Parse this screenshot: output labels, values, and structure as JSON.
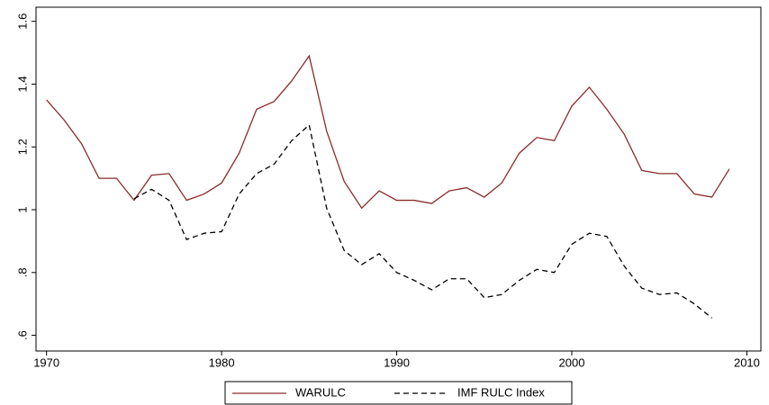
{
  "chart_data": {
    "type": "line",
    "x": [
      1970,
      1971,
      1972,
      1973,
      1974,
      1975,
      1976,
      1977,
      1978,
      1979,
      1980,
      1981,
      1982,
      1983,
      1984,
      1985,
      1986,
      1987,
      1988,
      1989,
      1990,
      1991,
      1992,
      1993,
      1994,
      1995,
      1996,
      1997,
      1998,
      1999,
      2000,
      2001,
      2002,
      2003,
      2004,
      2005,
      2006,
      2007,
      2008,
      2009
    ],
    "series": [
      {
        "name": "WARULC",
        "color": "#8b2b2b",
        "dash": false,
        "values": [
          1.35,
          1.286,
          1.21,
          1.1,
          1.1,
          1.03,
          1.11,
          1.115,
          1.03,
          1.05,
          1.085,
          1.18,
          1.32,
          1.345,
          1.41,
          1.49,
          1.25,
          1.09,
          1.005,
          1.06,
          1.03,
          1.03,
          1.02,
          1.06,
          1.07,
          1.04,
          1.085,
          1.18,
          1.23,
          1.22,
          1.33,
          1.39,
          1.32,
          1.24,
          1.125,
          1.115,
          1.115,
          1.05,
          1.04,
          1.13
        ]
      },
      {
        "name": "IMF RULC Index",
        "color": "#000000",
        "dash": true,
        "values": [
          null,
          null,
          null,
          null,
          null,
          1.035,
          1.065,
          1.03,
          0.905,
          0.925,
          0.93,
          1.05,
          1.115,
          1.145,
          1.22,
          1.27,
          1.005,
          0.87,
          0.825,
          0.86,
          0.8,
          0.775,
          0.745,
          0.78,
          0.78,
          0.72,
          0.73,
          0.775,
          0.81,
          0.8,
          0.89,
          0.925,
          0.915,
          0.82,
          0.75,
          0.73,
          0.735,
          0.7,
          0.655,
          null
        ]
      }
    ],
    "xlim": [
      1969.4,
      2010.8
    ],
    "xticks": [
      1970,
      1980,
      1990,
      2000,
      2010
    ],
    "ylim": [
      0.55,
      1.645
    ],
    "yticks": [
      {
        "value": 0.6,
        "label": ".6"
      },
      {
        "value": 0.8,
        "label": ".8"
      },
      1,
      1.2,
      1.4,
      1.6
    ],
    "grid": false,
    "legend": "bottom"
  }
}
